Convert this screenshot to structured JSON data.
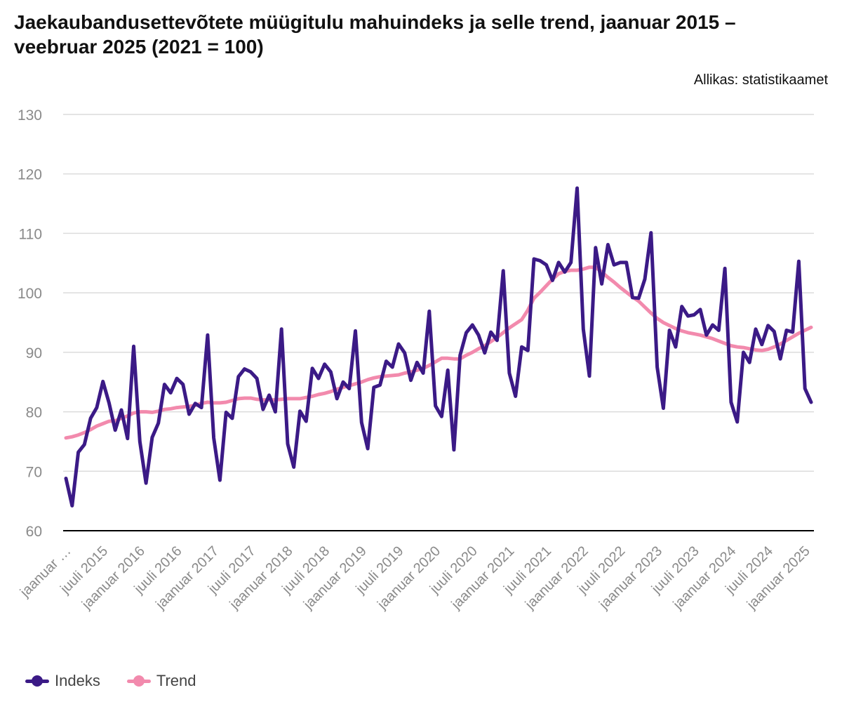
{
  "title": "Jaekaubandusettevõtete müügitulu mahuindeks ja selle trend, jaanuar 2015 – veebruar 2025 (2021 = 100)",
  "source": "Allikas: statistikaamet",
  "colors": {
    "indeks": "#3b1a86",
    "trend": "#f28aad",
    "grid": "#dcdcdc",
    "axis": "#000000",
    "tick": "#8a8a8a"
  },
  "legend": [
    {
      "label": "Indeks",
      "color": "#3b1a86"
    },
    {
      "label": "Trend",
      "color": "#f28aad"
    }
  ],
  "chart_data": {
    "type": "line",
    "title": "Jaekaubandusettevõtete müügitulu mahuindeks ja selle trend, jaanuar 2015 – veebruar 2025 (2021 = 100)",
    "xlabel": "",
    "ylabel": "",
    "ylim": [
      60,
      130
    ],
    "yticks": [
      60,
      70,
      80,
      90,
      100,
      110,
      120,
      130
    ],
    "grid": true,
    "legend_position": "bottom-left",
    "x_tick_labels": [
      {
        "index": 0,
        "label": "jaanuar …"
      },
      {
        "index": 6,
        "label": "juuli 2015"
      },
      {
        "index": 12,
        "label": "jaanuar 2016"
      },
      {
        "index": 18,
        "label": "juuli 2016"
      },
      {
        "index": 24,
        "label": "jaanuar 2017"
      },
      {
        "index": 30,
        "label": "juuli 2017"
      },
      {
        "index": 36,
        "label": "jaanuar 2018"
      },
      {
        "index": 42,
        "label": "juuli 2018"
      },
      {
        "index": 48,
        "label": "jaanuar 2019"
      },
      {
        "index": 54,
        "label": "juuli 2019"
      },
      {
        "index": 60,
        "label": "jaanuar 2020"
      },
      {
        "index": 66,
        "label": "juuli 2020"
      },
      {
        "index": 72,
        "label": "jaanuar 2021"
      },
      {
        "index": 78,
        "label": "juuli 2021"
      },
      {
        "index": 84,
        "label": "jaanuar 2022"
      },
      {
        "index": 90,
        "label": "juuli 2022"
      },
      {
        "index": 96,
        "label": "jaanuar 2023"
      },
      {
        "index": 102,
        "label": "juuli 2023"
      },
      {
        "index": 108,
        "label": "jaanuar 2024"
      },
      {
        "index": 114,
        "label": "juuli 2024"
      },
      {
        "index": 120,
        "label": "jaanuar 2025"
      }
    ],
    "series": [
      {
        "name": "Indeks",
        "values": [
          68.8,
          64.2,
          73.2,
          74.5,
          78.9,
          80.7,
          85.1,
          81.5,
          76.9,
          80.3,
          75.5,
          91.0,
          75.0,
          68.0,
          75.7,
          78.1,
          84.6,
          83.2,
          85.6,
          84.6,
          79.6,
          81.4,
          80.7,
          92.9,
          75.6,
          68.5,
          79.9,
          78.9,
          85.9,
          87.2,
          86.7,
          85.6,
          80.4,
          82.8,
          80.0,
          93.9,
          74.6,
          70.7,
          80.1,
          78.4,
          87.3,
          85.6,
          88.0,
          86.7,
          82.2,
          85.0,
          83.9,
          93.6,
          78.2,
          73.8,
          84.1,
          84.5,
          88.5,
          87.5,
          91.4,
          89.9,
          85.3,
          88.3,
          86.5,
          96.9,
          81.0,
          79.2,
          87.0,
          73.6,
          89.5,
          93.3,
          94.6,
          92.9,
          89.9,
          93.4,
          92.0,
          103.7,
          86.5,
          82.6,
          90.9,
          90.3,
          105.7,
          105.4,
          104.7,
          102.1,
          105.1,
          103.5,
          105.1,
          117.6,
          93.9,
          86.0,
          107.6,
          101.5,
          108.1,
          104.7,
          105.1,
          105.1,
          99.2,
          99.1,
          102.3,
          110.1,
          87.5,
          80.6,
          93.7,
          90.9,
          97.7,
          96.1,
          96.3,
          97.2,
          92.9,
          94.6,
          93.7,
          104.1,
          81.6,
          78.3,
          90.0,
          88.3,
          93.9,
          91.3,
          94.5,
          93.5,
          88.9,
          93.7,
          93.4,
          105.3,
          83.9,
          81.6
        ]
      },
      {
        "name": "Trend",
        "values": [
          75.6,
          75.8,
          76.1,
          76.5,
          77.0,
          77.6,
          78.0,
          78.4,
          78.5,
          78.9,
          79.3,
          79.8,
          80.0,
          80.0,
          79.9,
          80.1,
          80.4,
          80.5,
          80.7,
          80.8,
          80.9,
          81.1,
          81.4,
          81.6,
          81.5,
          81.5,
          81.6,
          81.9,
          82.2,
          82.3,
          82.3,
          82.1,
          82.0,
          82.0,
          82.0,
          82.1,
          82.2,
          82.2,
          82.2,
          82.4,
          82.6,
          82.9,
          83.1,
          83.4,
          83.8,
          84.1,
          84.4,
          84.7,
          85.0,
          85.4,
          85.7,
          85.9,
          86.0,
          86.1,
          86.2,
          86.5,
          86.7,
          87.0,
          87.3,
          87.8,
          88.4,
          89.0,
          89.0,
          88.9,
          88.9,
          89.5,
          90.0,
          90.6,
          91.1,
          91.8,
          92.5,
          93.3,
          94.1,
          94.8,
          95.5,
          97.1,
          99.1,
          100.1,
          101.2,
          102.3,
          103.2,
          103.6,
          103.8,
          103.8,
          104.0,
          104.3,
          104.3,
          103.5,
          102.6,
          101.8,
          100.9,
          100.1,
          99.3,
          98.6,
          97.6,
          96.6,
          95.7,
          95.0,
          94.5,
          94.0,
          93.6,
          93.3,
          93.1,
          92.9,
          92.6,
          92.3,
          91.9,
          91.5,
          91.1,
          90.9,
          90.8,
          90.6,
          90.4,
          90.3,
          90.5,
          90.9,
          91.4,
          92.0,
          92.6,
          93.2,
          93.7,
          94.2
        ]
      }
    ]
  }
}
